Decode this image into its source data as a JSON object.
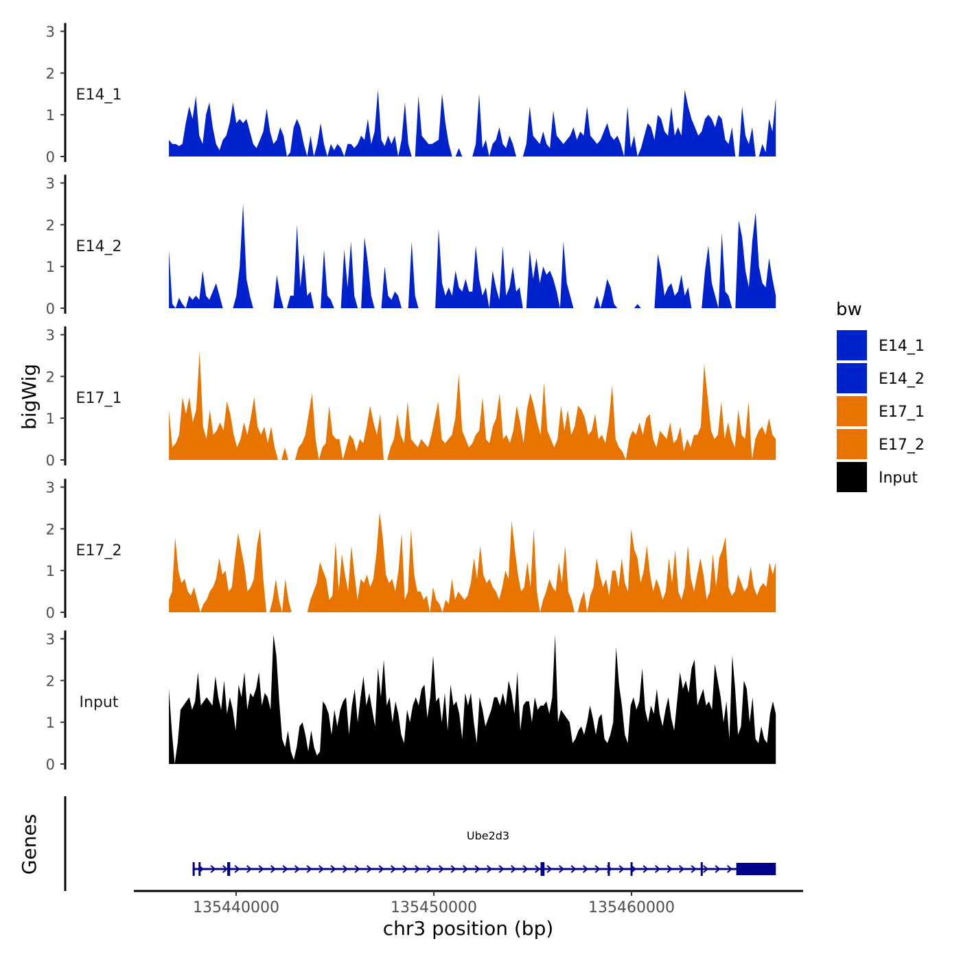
{
  "chart_data": {
    "type": "area",
    "ylabel": "bigWig",
    "xlabel": "chr3 position (bp)",
    "xlim": [
      135434000,
      135468000
    ],
    "ylim": [
      0,
      3.2
    ],
    "y_ticks": [
      0,
      1,
      2,
      3
    ],
    "x_ticks": [
      135440000,
      135450000,
      135460000
    ],
    "x_tick_labels": [
      "135440000",
      "135450000",
      "135460000"
    ],
    "legend": {
      "title": "bw",
      "placement": "right",
      "entries": [
        {
          "label": "E14_1",
          "color": "#0022cc"
        },
        {
          "label": "E14_2",
          "color": "#0022cc"
        },
        {
          "label": "E17_1",
          "color": "#e87400"
        },
        {
          "label": "E17_2",
          "color": "#e87400"
        },
        {
          "label": "Input",
          "color": "#000000"
        }
      ]
    },
    "x_start": 135436600,
    "x_end": 135467300,
    "tracks": [
      {
        "name": "E14_1",
        "color": "#0022cc",
        "values": [
          0.4,
          0.3,
          0.3,
          0.25,
          0.3,
          0.8,
          1.2,
          0.9,
          1.45,
          0.5,
          0.3,
          1.0,
          1.3,
          0.7,
          0.3,
          0.15,
          0.4,
          0.5,
          0.8,
          1.3,
          0.8,
          0.9,
          0.8,
          0.9,
          0.6,
          0.3,
          0.2,
          0.4,
          0.6,
          1.15,
          0.6,
          0.3,
          0.4,
          0.7,
          0.5,
          0.0,
          0.1,
          0.7,
          0.9,
          0.7,
          0.3,
          0.0,
          0.5,
          0.0,
          0.3,
          0.8,
          0.3,
          0.0,
          0.3,
          0.15,
          0.3,
          0.2,
          0.0,
          0.3,
          0.3,
          0.2,
          0.3,
          0.5,
          0.4,
          0.9,
          0.3,
          0.6,
          1.6,
          0.4,
          0.25,
          0.5,
          0.3,
          0.5,
          0.0,
          0.4,
          1.3,
          0.3,
          0.0,
          0.0,
          1.45,
          0.5,
          0.4,
          0.3,
          0.3,
          0.35,
          0.4,
          1.5,
          0.8,
          0.3,
          0.0,
          0.0,
          0.2,
          0.0,
          0.0,
          0.0,
          0.0,
          0.3,
          1.5,
          0.2,
          0.4,
          0.0,
          0.3,
          0.4,
          0.7,
          0.3,
          0.2,
          0.5,
          0.3,
          0.0,
          0.0,
          0.0,
          0.3,
          1.2,
          0.5,
          0.4,
          0.3,
          0.6,
          0.3,
          0.2,
          1.1,
          0.5,
          0.4,
          0.3,
          0.4,
          0.5,
          0.7,
          0.4,
          0.6,
          0.5,
          1.2,
          0.5,
          0.4,
          0.3,
          0.4,
          0.6,
          0.8,
          0.5,
          0.4,
          0.5,
          0.3,
          0.0,
          1.2,
          0.2,
          0.5,
          0.0,
          0.2,
          0.5,
          0.8,
          0.7,
          0.4,
          1.0,
          0.9,
          0.6,
          0.5,
          1.2,
          0.5,
          0.7,
          0.5,
          1.6,
          1.2,
          0.9,
          0.7,
          0.5,
          0.6,
          0.9,
          1.0,
          0.9,
          0.7,
          1.0,
          0.9,
          0.4,
          0.3,
          0.7,
          0.0,
          0.0,
          1.2,
          0.5,
          0.3,
          0.7,
          0.0,
          0.0,
          0.3,
          0.1,
          0.9,
          0.6,
          1.4
        ]
      },
      {
        "name": "E14_2",
        "color": "#0022cc",
        "values": [
          1.4,
          0.1,
          0.0,
          0.25,
          0.1,
          0.0,
          0.3,
          0.2,
          0.3,
          0.2,
          0.9,
          0.3,
          0.2,
          0.4,
          0.6,
          0.3,
          0.0,
          0.0,
          0.0,
          0.0,
          0.3,
          1.0,
          2.5,
          0.7,
          0.3,
          0.0,
          0.0,
          0.0,
          0.0,
          0.0,
          0.0,
          0.0,
          0.8,
          0.3,
          0.0,
          0.0,
          0.3,
          0.3,
          2.0,
          0.5,
          1.3,
          0.3,
          0.4,
          0.0,
          0.0,
          0.0,
          1.4,
          0.3,
          0.2,
          0.0,
          0.0,
          0.0,
          1.4,
          0.5,
          1.6,
          0.3,
          0.0,
          0.0,
          1.7,
          1.1,
          0.3,
          0.0,
          0.0,
          0.0,
          1.0,
          0.3,
          0.2,
          0.4,
          0.3,
          0.0,
          0.0,
          0.0,
          1.6,
          0.3,
          0.0,
          0.0,
          0.0,
          0.0,
          0.0,
          0.0,
          1.9,
          0.6,
          0.3,
          0.5,
          0.3,
          0.9,
          0.5,
          0.4,
          0.7,
          0.4,
          0.4,
          1.5,
          0.7,
          0.3,
          0.5,
          0.0,
          0.9,
          0.5,
          0.2,
          1.5,
          0.3,
          0.5,
          1.0,
          0.4,
          0.5,
          0.0,
          0.0,
          1.4,
          0.7,
          1.2,
          0.6,
          1.0,
          0.8,
          0.9,
          0.7,
          0.4,
          0.0,
          1.6,
          0.6,
          0.3,
          0.0,
          0.0,
          0.0,
          0.0,
          0.0,
          0.0,
          0.0,
          0.3,
          0.0,
          0.3,
          0.7,
          0.5,
          0.1,
          0.0,
          0.0,
          0.0,
          0.0,
          0.0,
          0.0,
          0.1,
          0.0,
          0.0,
          0.0,
          0.0,
          0.0,
          1.3,
          0.9,
          0.3,
          0.5,
          0.6,
          0.3,
          0.4,
          0.8,
          0.3,
          0.5,
          0.0,
          0.0,
          0.0,
          0.0,
          0.9,
          1.5,
          0.6,
          0.3,
          0.0,
          1.8,
          0.4,
          0.3,
          0.0,
          0.0,
          2.1,
          1.7,
          0.9,
          0.5,
          1.6,
          2.3,
          1.0,
          0.6,
          0.5,
          1.2,
          0.7,
          0.3
        ]
      },
      {
        "name": "E17_1",
        "color": "#e87400",
        "values": [
          1.2,
          0.3,
          0.4,
          0.6,
          1.5,
          1.1,
          1.5,
          0.9,
          1.2,
          2.6,
          0.8,
          0.5,
          1.2,
          0.6,
          0.7,
          0.9,
          0.7,
          1.4,
          1.1,
          0.6,
          0.3,
          0.5,
          0.9,
          0.6,
          1.0,
          1.5,
          0.8,
          0.6,
          0.8,
          0.4,
          0.8,
          0.3,
          0.0,
          0.0,
          0.3,
          0.0,
          0.0,
          0.0,
          0.3,
          0.4,
          0.6,
          1.1,
          1.6,
          0.5,
          0.0,
          0.3,
          0.4,
          1.3,
          0.6,
          0.5,
          0.5,
          0.0,
          0.3,
          0.6,
          0.5,
          0.2,
          0.5,
          0.4,
          0.8,
          1.3,
          0.9,
          0.6,
          1.1,
          0.0,
          0.0,
          0.3,
          0.5,
          1.1,
          0.6,
          0.4,
          1.4,
          0.5,
          0.4,
          0.3,
          0.5,
          0.4,
          0.3,
          0.6,
          1.0,
          1.4,
          0.5,
          0.4,
          0.5,
          0.6,
          1.0,
          2.05,
          0.7,
          0.5,
          0.3,
          0.4,
          0.6,
          0.7,
          1.5,
          0.5,
          0.4,
          0.8,
          1.0,
          1.6,
          0.5,
          0.6,
          0.4,
          0.7,
          1.3,
          0.9,
          0.4,
          1.2,
          1.6,
          1.3,
          0.9,
          0.6,
          1.85,
          0.7,
          0.5,
          0.3,
          0.5,
          1.3,
          0.7,
          1.2,
          0.6,
          0.8,
          1.3,
          1.2,
          1.0,
          0.6,
          0.7,
          1.1,
          0.5,
          0.6,
          0.4,
          0.9,
          1.8,
          0.5,
          0.3,
          0.2,
          0.0,
          0.5,
          0.7,
          0.6,
          0.9,
          0.6,
          1.0,
          1.1,
          0.5,
          0.3,
          0.7,
          0.6,
          0.5,
          0.9,
          0.4,
          0.5,
          0.8,
          0.2,
          0.5,
          0.3,
          0.6,
          0.6,
          0.8,
          2.3,
          1.5,
          0.7,
          0.5,
          0.6,
          1.4,
          0.5,
          0.9,
          0.5,
          0.3,
          1.2,
          0.6,
          0.5,
          1.4,
          0.0,
          0.5,
          0.7,
          0.8,
          0.6,
          1.0,
          0.6,
          0.5
        ]
      },
      {
        "name": "E17_2",
        "color": "#e87400",
        "values": [
          0.3,
          0.5,
          1.8,
          1.0,
          0.7,
          0.8,
          0.5,
          0.4,
          0.6,
          0.3,
          0.0,
          0.2,
          0.3,
          0.5,
          0.6,
          0.8,
          1.3,
          0.9,
          1.0,
          0.5,
          0.6,
          1.3,
          1.9,
          1.5,
          1.1,
          0.5,
          0.6,
          0.8,
          1.6,
          2.0,
          0.8,
          0.0,
          0.0,
          0.3,
          0.8,
          0.3,
          0.0,
          0.8,
          0.3,
          0.0,
          0.0,
          0.0,
          0.0,
          0.0,
          0.0,
          0.3,
          0.5,
          0.7,
          1.2,
          1.0,
          0.8,
          0.3,
          0.4,
          1.7,
          0.5,
          1.4,
          0.9,
          0.5,
          1.6,
          0.9,
          0.3,
          0.8,
          0.7,
          0.9,
          0.6,
          0.8,
          1.4,
          2.4,
          1.8,
          0.9,
          0.7,
          0.8,
          0.5,
          1.0,
          1.9,
          0.3,
          0.5,
          2.0,
          0.9,
          0.5,
          0.5,
          0.3,
          0.4,
          0.0,
          0.6,
          0.3,
          0.2,
          0.0,
          0.3,
          0.2,
          0.8,
          0.3,
          0.5,
          0.4,
          0.3,
          0.4,
          0.7,
          1.3,
          0.8,
          1.6,
          0.9,
          0.7,
          0.8,
          0.6,
          0.5,
          0.3,
          0.6,
          1.0,
          0.8,
          2.2,
          1.5,
          0.9,
          0.5,
          0.6,
          1.2,
          0.6,
          2.0,
          0.5,
          0.0,
          0.3,
          0.5,
          0.8,
          0.6,
          0.5,
          1.2,
          0.7,
          1.6,
          0.5,
          0.3,
          0.0,
          0.0,
          0.3,
          0.5,
          0.0,
          0.4,
          0.6,
          1.3,
          0.9,
          0.6,
          0.8,
          0.4,
          1.0,
          1.0,
          0.6,
          1.3,
          0.7,
          0.5,
          2.0,
          1.5,
          1.3,
          0.7,
          1.0,
          1.6,
          0.9,
          0.5,
          0.8,
          0.6,
          0.3,
          0.5,
          1.3,
          0.7,
          1.5,
          0.5,
          0.3,
          0.6,
          1.6,
          0.8,
          0.5,
          0.9,
          1.3,
          0.9,
          0.3,
          0.5,
          1.4,
          0.6,
          1.3,
          1.5,
          1.8,
          0.6,
          0.4,
          0.5,
          0.9,
          0.7,
          0.5,
          0.6,
          1.1,
          0.6,
          0.4,
          0.6,
          0.7,
          0.6,
          1.2,
          0.9,
          1.2
        ]
      },
      {
        "name": "Input",
        "color": "#000000",
        "values": [
          1.8,
          0.8,
          0.0,
          0.5,
          1.3,
          1.4,
          1.5,
          1.6,
          1.3,
          1.5,
          2.2,
          1.4,
          1.5,
          1.6,
          1.5,
          1.4,
          2.1,
          1.6,
          1.3,
          2.0,
          1.2,
          1.6,
          1.3,
          0.8,
          1.9,
          1.6,
          2.2,
          1.3,
          1.7,
          1.6,
          1.8,
          2.2,
          1.4,
          1.7,
          1.6,
          1.3,
          3.1,
          2.6,
          1.5,
          0.6,
          0.4,
          0.8,
          0.3,
          0.1,
          0.4,
          0.9,
          1.0,
          0.7,
          0.3,
          0.8,
          0.4,
          0.2,
          0.3,
          1.5,
          1.4,
          1.2,
          0.7,
          1.3,
          0.9,
          1.3,
          1.5,
          1.6,
          0.7,
          1.4,
          1.8,
          1.0,
          1.6,
          2.1,
          1.4,
          1.7,
          1.3,
          0.9,
          2.3,
          1.6,
          2.5,
          1.4,
          1.6,
          1.0,
          1.5,
          1.2,
          0.7,
          0.5,
          1.3,
          1.0,
          1.4,
          1.6,
          1.4,
          1.8,
          1.9,
          1.1,
          1.6,
          2.6,
          1.5,
          1.6,
          1.0,
          1.7,
          0.8,
          1.9,
          1.4,
          1.5,
          1.2,
          0.6,
          1.7,
          1.4,
          1.7,
          1.0,
          0.5,
          1.6,
          1.3,
          0.9,
          1.1,
          1.3,
          1.6,
          1.6,
          1.4,
          1.7,
          1.4,
          2.0,
          1.7,
          1.2,
          2.2,
          0.8,
          1.4,
          1.5,
          1.5,
          1.0,
          1.6,
          1.3,
          1.4,
          1.4,
          1.5,
          1.2,
          1.6,
          3.1,
          1.0,
          1.3,
          1.2,
          1.1,
          1.0,
          0.5,
          0.6,
          0.8,
          0.9,
          0.7,
          1.0,
          1.4,
          1.1,
          0.7,
          1.1,
          1.2,
          0.6,
          0.5,
          0.7,
          1.0,
          2.8,
          1.9,
          1.4,
          0.7,
          0.5,
          1.4,
          1.6,
          1.3,
          1.5,
          2.3,
          1.3,
          1.0,
          1.4,
          1.2,
          1.8,
          1.2,
          0.9,
          1.3,
          1.6,
          1.1,
          0.8,
          1.5,
          2.2,
          1.8,
          2.0,
          1.7,
          2.3,
          2.5,
          1.4,
          1.6,
          1.8,
          1.4,
          1.5,
          1.3,
          2.4,
          2.0,
          1.6,
          1.0,
          1.5,
          0.6,
          2.6,
          1.8,
          0.7,
          0.9,
          2.0,
          1.8,
          1.0,
          1.6,
          0.6,
          0.5,
          0.9,
          0.6,
          0.5,
          1.2,
          1.5,
          1.2
        ]
      }
    ],
    "gene_track": {
      "ylabel": "Genes",
      "gene_name": "Ube2d3",
      "strand": "+",
      "start": 135437800,
      "end": 135467300,
      "exons": [
        [
          135437800,
          135437900
        ],
        [
          135438100,
          135438200
        ],
        [
          135439550,
          135439700
        ],
        [
          135455400,
          135455600
        ],
        [
          135458800,
          135458900
        ],
        [
          135459950,
          135460050
        ],
        [
          135463500,
          135463600
        ],
        [
          135465300,
          135467300
        ]
      ]
    }
  }
}
